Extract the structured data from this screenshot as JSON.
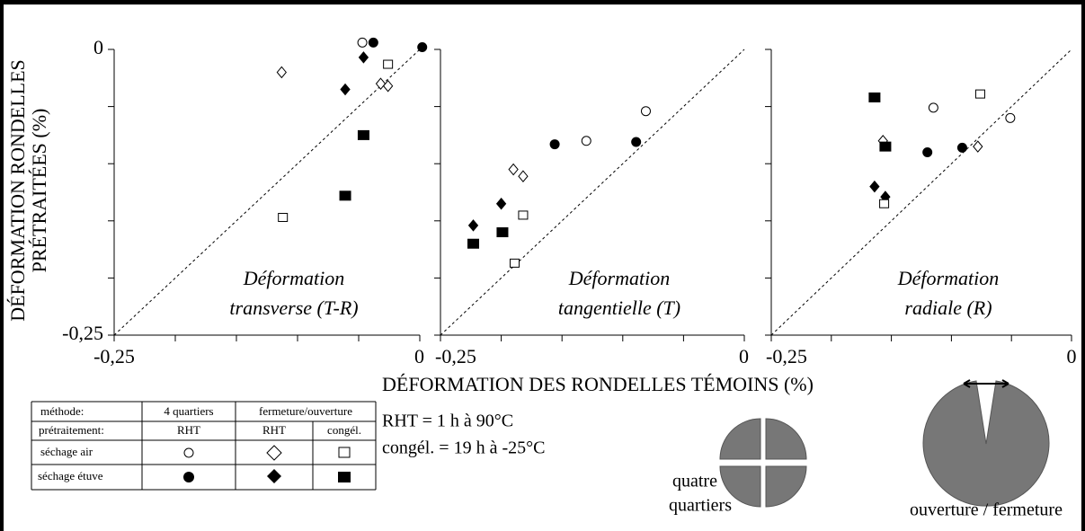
{
  "figure": {
    "y_label": [
      "DÉFORMATION RONDELLES",
      "PRÉTRAITÉES (%)"
    ],
    "x_label": "DÉFORMATION DES RONDELLES TÉMOINS (%)"
  },
  "chart_data": [
    {
      "type": "scatter",
      "annotation": [
        "Déformation",
        "transverse (T-R)"
      ],
      "xlim": [
        -0.25,
        0
      ],
      "ylim": [
        -0.25,
        0
      ],
      "diagonal": true,
      "xticks": [
        {
          "value": -0.25,
          "label": "-0,25"
        },
        0
      ],
      "minor_xticks": [
        -0.2,
        -0.15,
        -0.1,
        -0.05
      ],
      "yticks": [
        0,
        {
          "value": -0.25,
          "label": "-0,25"
        }
      ],
      "minor_yticks": [
        -0.2,
        -0.15,
        -0.1,
        -0.05
      ],
      "series": [
        {
          "marker": "circle",
          "filled": false,
          "x": [
            -0.047
          ],
          "y": [
            0.006
          ]
        },
        {
          "marker": "circle",
          "filled": true,
          "x": [
            -0.038,
            0.002
          ],
          "y": [
            0.006,
            0.002
          ]
        },
        {
          "marker": "diamond",
          "filled": false,
          "x": [
            -0.113,
            -0.032,
            -0.026
          ],
          "y": [
            -0.02,
            -0.03,
            -0.032
          ]
        },
        {
          "marker": "diamond",
          "filled": true,
          "x": [
            -0.046,
            -0.061
          ],
          "y": [
            -0.007,
            -0.035
          ]
        },
        {
          "marker": "square",
          "filled": false,
          "x": [
            -0.026,
            -0.112
          ],
          "y": [
            -0.013,
            -0.147
          ]
        },
        {
          "marker": "square",
          "filled": true,
          "x": [
            -0.046,
            -0.061
          ],
          "y": [
            -0.075,
            -0.128
          ]
        }
      ]
    },
    {
      "type": "scatter",
      "annotation": [
        "Déformation",
        "tangentielle (T)"
      ],
      "xlim": [
        -0.25,
        0
      ],
      "ylim": [
        -0.25,
        0
      ],
      "diagonal": true,
      "xticks": [
        {
          "value": -0.25,
          "label": "-0,25"
        },
        0
      ],
      "minor_xticks": [
        -0.2,
        -0.15,
        -0.1,
        -0.05
      ],
      "yticks": [],
      "minor_yticks": [
        0,
        -0.05,
        -0.1,
        -0.15,
        -0.2,
        -0.25
      ],
      "series": [
        {
          "marker": "circle",
          "filled": false,
          "x": [
            -0.081,
            -0.13
          ],
          "y": [
            -0.054,
            -0.08
          ]
        },
        {
          "marker": "circle",
          "filled": true,
          "x": [
            -0.089,
            -0.156
          ],
          "y": [
            -0.081,
            -0.083
          ]
        },
        {
          "marker": "diamond",
          "filled": false,
          "x": [
            -0.19,
            -0.182
          ],
          "y": [
            -0.105,
            -0.111
          ]
        },
        {
          "marker": "diamond",
          "filled": true,
          "x": [
            -0.2,
            -0.223
          ],
          "y": [
            -0.135,
            -0.154
          ]
        },
        {
          "marker": "square",
          "filled": false,
          "x": [
            -0.182,
            -0.189
          ],
          "y": [
            -0.145,
            -0.187
          ]
        },
        {
          "marker": "square",
          "filled": true,
          "x": [
            -0.199,
            -0.223
          ],
          "y": [
            -0.16,
            -0.17
          ]
        }
      ]
    },
    {
      "type": "scatter",
      "annotation": [
        "Déformation",
        "radiale  (R)"
      ],
      "xlim": [
        -0.25,
        0
      ],
      "ylim": [
        -0.25,
        0
      ],
      "diagonal": true,
      "xticks": [
        {
          "value": -0.25,
          "label": "-0,25"
        },
        0
      ],
      "minor_xticks": [
        -0.2,
        -0.15,
        -0.1,
        -0.05
      ],
      "yticks": [],
      "minor_yticks": [
        0,
        -0.05,
        -0.1,
        -0.15,
        -0.2,
        -0.25
      ],
      "series": [
        {
          "marker": "circle",
          "filled": false,
          "x": [
            -0.115,
            -0.051
          ],
          "y": [
            -0.051,
            -0.06
          ]
        },
        {
          "marker": "circle",
          "filled": true,
          "x": [
            -0.091,
            -0.12
          ],
          "y": [
            -0.086,
            -0.09
          ]
        },
        {
          "marker": "diamond",
          "filled": false,
          "x": [
            -0.157,
            -0.078
          ],
          "y": [
            -0.08,
            -0.085
          ]
        },
        {
          "marker": "diamond",
          "filled": true,
          "x": [
            -0.164,
            -0.155
          ],
          "y": [
            -0.12,
            -0.129
          ]
        },
        {
          "marker": "square",
          "filled": false,
          "x": [
            -0.076,
            -0.156
          ],
          "y": [
            -0.039,
            -0.135
          ]
        },
        {
          "marker": "square",
          "filled": true,
          "x": [
            -0.164,
            -0.155
          ],
          "y": [
            -0.042,
            -0.085
          ]
        }
      ]
    }
  ],
  "legend_table": {
    "header": [
      "méthode:",
      "4 quartiers",
      "fermeture/ouverture"
    ],
    "subheader": [
      "prétraitement:",
      "RHT",
      "RHT",
      "congél."
    ],
    "rows": [
      "séchage air",
      "séchage étuve"
    ]
  },
  "notes": [
    "RHT = 1 h à 90°C",
    "congél. = 19 h à -25°C"
  ],
  "diagrams": {
    "quarters": [
      "quatre",
      "quartiers"
    ],
    "opening": "ouverture / fermeture"
  }
}
